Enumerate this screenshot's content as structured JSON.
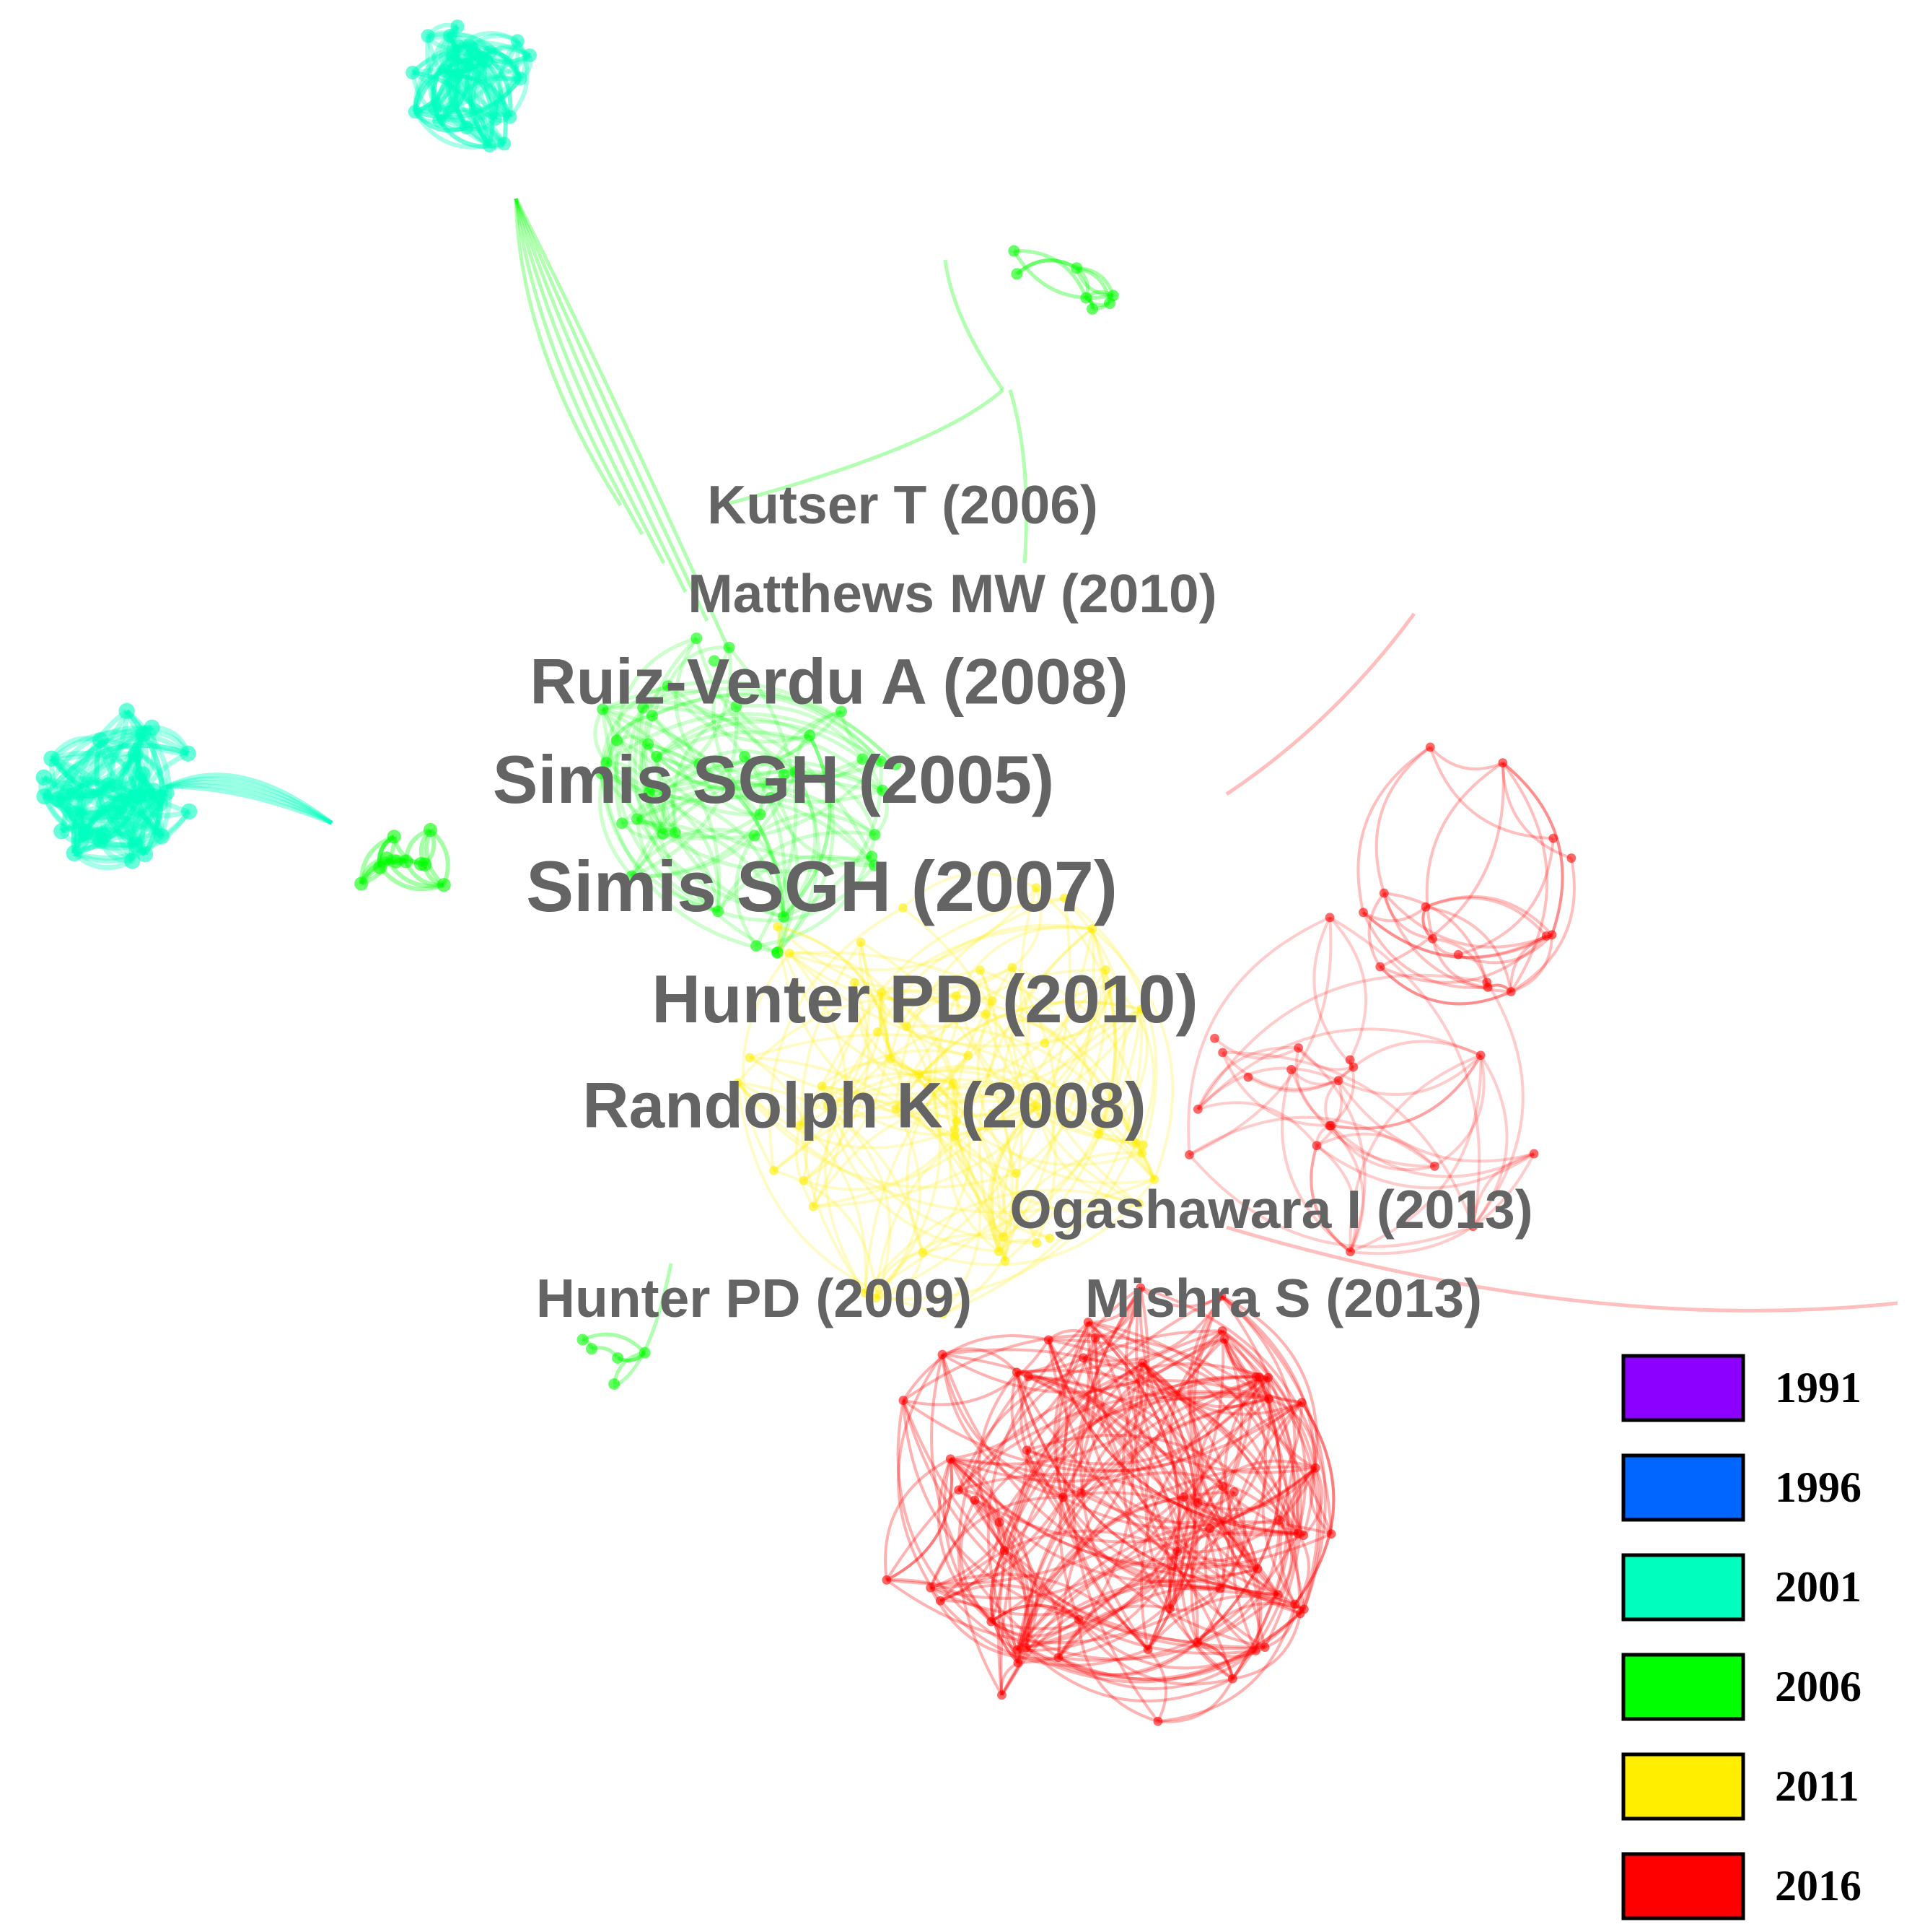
{
  "labels": [
    "Kutser T (2006)",
    "Matthews MW (2010)",
    "Ruiz-Verdu A (2008)",
    "Simis SGH (2005)",
    "Simis SGH (2007)",
    "Hunter PD (2010)",
    "Randolph K (2008)",
    "Ogashawara I (2013)",
    "Hunter PD (2009)",
    "Mishra S (2013)"
  ],
  "legend": [
    {
      "year": "1991",
      "color": "#8b00ff"
    },
    {
      "year": "1996",
      "color": "#0066ff"
    },
    {
      "year": "2001",
      "color": "#00ffbf"
    },
    {
      "year": "2006",
      "color": "#00ff00"
    },
    {
      "year": "2011",
      "color": "#ffee00"
    },
    {
      "year": "2016",
      "color": "#ff0000"
    }
  ]
}
